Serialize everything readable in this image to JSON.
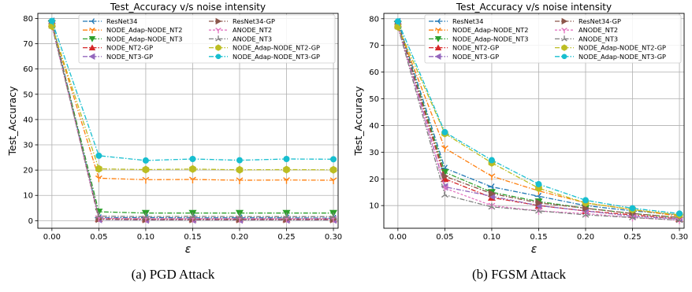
{
  "colors": [
    "#1f77b4",
    "#ff7f0e",
    "#2ca02c",
    "#d62728",
    "#9467bd",
    "#8c564b",
    "#e377c2",
    "#7f7f7f",
    "#bcbd22",
    "#17becf"
  ],
  "markers": [
    "tri_left",
    "tri_down",
    "tri_down_filled",
    "tri_up_filled",
    "tri_left_filled",
    "tri_right_filled",
    "tri_down",
    "tri_up",
    "hexagon",
    "circle"
  ],
  "chart_data": [
    {
      "type": "line",
      "caption": "(a)  PGD Attack",
      "title": "Test_Accuracy v/s noise intensity",
      "xlabel": "ε",
      "ylabel": "Test_Accuracy",
      "xlim": [
        -0.015,
        0.305
      ],
      "ylim": [
        -3,
        82
      ],
      "xticks": [
        "0.00",
        "0.05",
        "0.10",
        "0.15",
        "0.20",
        "0.25",
        "0.30"
      ],
      "yticks": [
        "0",
        "10",
        "20",
        "30",
        "40",
        "50",
        "60",
        "70",
        "80"
      ],
      "grid": true,
      "legend": "upper-right, 2 columns",
      "x": [
        0.0,
        0.05,
        0.1,
        0.15,
        0.2,
        0.25,
        0.3
      ],
      "series": [
        {
          "name": "ResNet34",
          "values": [
            79,
            1.2,
            1.2,
            1.1,
            1.1,
            1.1,
            1.0
          ]
        },
        {
          "name": "NODE_Adap-NODE_NT2",
          "values": [
            77,
            16.8,
            16.2,
            16.3,
            16.0,
            16.1,
            16.0
          ]
        },
        {
          "name": "NODE_Adap-NODE_NT3",
          "values": [
            78,
            3.5,
            3.0,
            3.0,
            3.0,
            3.0,
            3.0
          ]
        },
        {
          "name": "NODE_NT2-GP",
          "values": [
            78,
            0.8,
            0.6,
            0.6,
            0.6,
            0.6,
            0.6
          ]
        },
        {
          "name": "NODE_NT3-GP",
          "values": [
            78,
            0.5,
            0.3,
            0.3,
            0.3,
            0.3,
            0.3
          ]
        },
        {
          "name": "ResNet34-GP",
          "values": [
            78,
            0.6,
            0.5,
            0.5,
            0.5,
            0.5,
            0.5
          ]
        },
        {
          "name": "ANODE_NT2",
          "values": [
            77,
            1.0,
            0.8,
            0.8,
            0.8,
            0.8,
            0.8
          ]
        },
        {
          "name": "ANODE_NT3",
          "values": [
            77,
            1.8,
            1.6,
            1.7,
            1.6,
            1.6,
            1.6
          ]
        },
        {
          "name": "NODE_Adap-NODE_NT2-GP",
          "values": [
            77,
            20.5,
            20.2,
            20.4,
            20.1,
            20.2,
            20.1
          ]
        },
        {
          "name": "NODE_Adap-NODE_NT3-GP",
          "values": [
            79,
            25.7,
            23.8,
            24.4,
            23.9,
            24.4,
            24.3
          ]
        }
      ]
    },
    {
      "type": "line",
      "caption": "(b)  FGSM Attack",
      "title": "Test_Accuracy v/s noise intensity",
      "xlabel": "ε",
      "ylabel": "Test_Accuracy",
      "xlim": [
        -0.015,
        0.305
      ],
      "ylim": [
        1.5,
        82
      ],
      "xticks": [
        "0.00",
        "0.05",
        "0.10",
        "0.15",
        "0.20",
        "0.25",
        "0.30"
      ],
      "yticks": [
        "10",
        "20",
        "30",
        "40",
        "50",
        "60",
        "70",
        "80"
      ],
      "grid": true,
      "legend": "upper-right, 2 columns",
      "x": [
        0.0,
        0.05,
        0.1,
        0.15,
        0.2,
        0.25,
        0.3
      ],
      "series": [
        {
          "name": "ResNet34",
          "values": [
            79,
            24.0,
            17.0,
            13.5,
            10.0,
            8.0,
            6.5
          ]
        },
        {
          "name": "NODE_Adap-NODE_NT2",
          "values": [
            77,
            31.5,
            21.0,
            15.5,
            11.0,
            8.5,
            6.0
          ]
        },
        {
          "name": "NODE_Adap-NODE_NT3",
          "values": [
            78,
            22.5,
            15.0,
            11.5,
            9.0,
            7.0,
            5.5
          ]
        },
        {
          "name": "NODE_NT2-GP",
          "values": [
            78,
            20.0,
            13.0,
            10.0,
            8.0,
            6.5,
            5.0
          ]
        },
        {
          "name": "NODE_NT3-GP",
          "values": [
            78,
            17.0,
            13.5,
            10.0,
            8.0,
            6.0,
            5.0
          ]
        },
        {
          "name": "ResNet34-GP",
          "values": [
            78,
            21.0,
            14.5,
            11.0,
            9.0,
            7.0,
            5.5
          ]
        },
        {
          "name": "ANODE_NT2",
          "values": [
            77,
            16.5,
            10.0,
            8.0,
            7.0,
            5.5,
            4.5
          ]
        },
        {
          "name": "ANODE_NT3",
          "values": [
            77,
            14.0,
            9.5,
            8.0,
            6.5,
            5.5,
            4.5
          ]
        },
        {
          "name": "NODE_Adap-NODE_NT2-GP",
          "values": [
            77,
            37.0,
            26.0,
            16.5,
            11.0,
            8.5,
            6.5
          ]
        },
        {
          "name": "NODE_Adap-NODE_NT3-GP",
          "values": [
            79,
            37.5,
            27.0,
            18.0,
            12.0,
            9.0,
            7.0
          ]
        }
      ]
    }
  ]
}
